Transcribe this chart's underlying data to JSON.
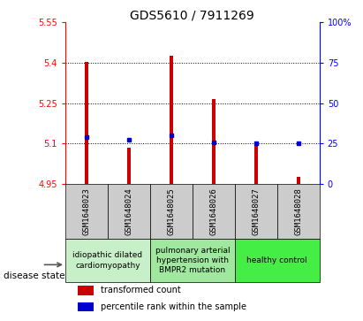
{
  "title": "GDS5610 / 7911269",
  "samples": [
    "GSM1648023",
    "GSM1648024",
    "GSM1648025",
    "GSM1648026",
    "GSM1648027",
    "GSM1648028"
  ],
  "red_values": [
    5.403,
    5.085,
    5.425,
    5.265,
    5.095,
    4.975
  ],
  "blue_values": [
    5.125,
    5.115,
    5.13,
    5.105,
    5.1,
    5.1
  ],
  "ylim_left": [
    4.95,
    5.55
  ],
  "ylim_right": [
    0,
    100
  ],
  "yticks_left": [
    4.95,
    5.1,
    5.25,
    5.4,
    5.55
  ],
  "yticks_right": [
    0,
    25,
    50,
    75,
    100
  ],
  "ytick_labels_left": [
    "4.95",
    "5.1",
    "5.25",
    "5.4",
    "5.55"
  ],
  "ytick_labels_right": [
    "0",
    "25",
    "50",
    "75",
    "100%"
  ],
  "hlines": [
    5.1,
    5.25,
    5.4
  ],
  "bar_bottom": 4.95,
  "bar_width": 0.08,
  "disease_groups": [
    {
      "label": "idiopathic dilated\ncardiomyopathy",
      "indices": [
        0,
        1
      ],
      "color": "#c8f0c8"
    },
    {
      "label": "pulmonary arterial\nhypertension with\nBMPR2 mutation",
      "indices": [
        2,
        3
      ],
      "color": "#a0e8a0"
    },
    {
      "label": "healthy control",
      "indices": [
        4,
        5
      ],
      "color": "#44ee44"
    }
  ],
  "sample_box_color": "#cccccc",
  "red_color": "#cc0000",
  "blue_color": "#0000cc",
  "legend_red_label": "transformed count",
  "legend_blue_label": "percentile rank within the sample",
  "disease_state_label": "disease state",
  "title_fontsize": 10,
  "tick_fontsize": 7,
  "sample_label_fontsize": 6.5,
  "disease_label_fontsize": 6.5,
  "legend_fontsize": 7
}
